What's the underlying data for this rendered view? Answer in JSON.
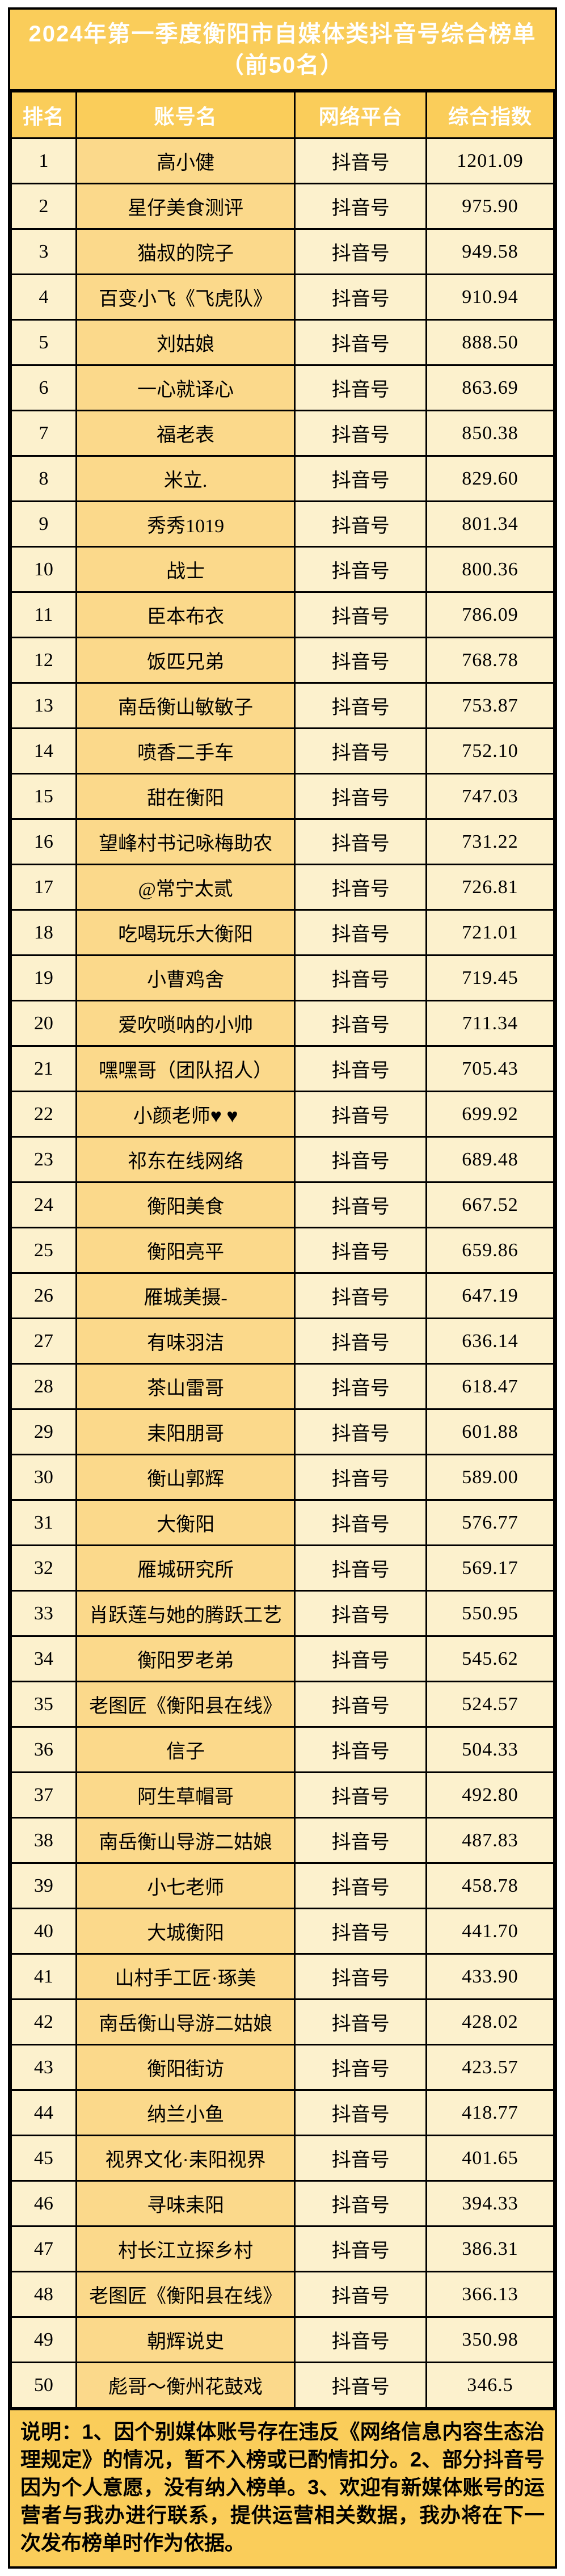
{
  "title": {
    "line1": "2024年第一季度衡阳市自媒体类抖音号综合榜单",
    "line2": "（前50名）"
  },
  "table": {
    "headers": {
      "rank": "排名",
      "name": "账号名",
      "platform": "网络平台",
      "index": "综合指数"
    },
    "rows": [
      {
        "rank": "1",
        "name": "高小健",
        "platform": "抖音号",
        "index": "1201.09"
      },
      {
        "rank": "2",
        "name": "星仔美食测评",
        "platform": "抖音号",
        "index": "975.90"
      },
      {
        "rank": "3",
        "name": "猫叔的院子",
        "platform": "抖音号",
        "index": "949.58"
      },
      {
        "rank": "4",
        "name": "百变小飞《飞虎队》",
        "platform": "抖音号",
        "index": "910.94"
      },
      {
        "rank": "5",
        "name": "刘姑娘",
        "platform": "抖音号",
        "index": "888.50"
      },
      {
        "rank": "6",
        "name": "一心就译心",
        "platform": "抖音号",
        "index": "863.69"
      },
      {
        "rank": "7",
        "name": "福老表",
        "platform": "抖音号",
        "index": "850.38"
      },
      {
        "rank": "8",
        "name": "米立.",
        "platform": "抖音号",
        "index": "829.60"
      },
      {
        "rank": "9",
        "name": "秀秀1019",
        "platform": "抖音号",
        "index": "801.34"
      },
      {
        "rank": "10",
        "name": "战士",
        "platform": "抖音号",
        "index": "800.36"
      },
      {
        "rank": "11",
        "name": "臣本布衣",
        "platform": "抖音号",
        "index": "786.09"
      },
      {
        "rank": "12",
        "name": "饭匹兄弟",
        "platform": "抖音号",
        "index": "768.78"
      },
      {
        "rank": "13",
        "name": "南岳衡山敏敏子",
        "platform": "抖音号",
        "index": "753.87"
      },
      {
        "rank": "14",
        "name": "喷香二手车",
        "platform": "抖音号",
        "index": "752.10"
      },
      {
        "rank": "15",
        "name": "甜在衡阳",
        "platform": "抖音号",
        "index": "747.03"
      },
      {
        "rank": "16",
        "name": "望峰村书记咏梅助农",
        "platform": "抖音号",
        "index": "731.22"
      },
      {
        "rank": "17",
        "name": "@常宁太贰",
        "platform": "抖音号",
        "index": "726.81"
      },
      {
        "rank": "18",
        "name": "吃喝玩乐大衡阳",
        "platform": "抖音号",
        "index": "721.01"
      },
      {
        "rank": "19",
        "name": "小曹鸡舍",
        "platform": "抖音号",
        "index": "719.45"
      },
      {
        "rank": "20",
        "name": "爱吹唢呐的小帅",
        "platform": "抖音号",
        "index": "711.34"
      },
      {
        "rank": "21",
        "name": "嘿嘿哥（团队招人）",
        "platform": "抖音号",
        "index": "705.43"
      },
      {
        "rank": "22",
        "name": "小颜老师♥ ♥",
        "platform": "抖音号",
        "index": "699.92"
      },
      {
        "rank": "23",
        "name": "祁东在线网络",
        "platform": "抖音号",
        "index": "689.48"
      },
      {
        "rank": "24",
        "name": "衡阳美食",
        "platform": "抖音号",
        "index": "667.52"
      },
      {
        "rank": "25",
        "name": "衡阳亮平",
        "platform": "抖音号",
        "index": "659.86"
      },
      {
        "rank": "26",
        "name": "雁城美摄-",
        "platform": "抖音号",
        "index": "647.19"
      },
      {
        "rank": "27",
        "name": "有味羽洁",
        "platform": "抖音号",
        "index": "636.14"
      },
      {
        "rank": "28",
        "name": "茶山雷哥",
        "platform": "抖音号",
        "index": "618.47"
      },
      {
        "rank": "29",
        "name": "耒阳朋哥",
        "platform": "抖音号",
        "index": "601.88"
      },
      {
        "rank": "30",
        "name": "衡山郭辉",
        "platform": "抖音号",
        "index": "589.00"
      },
      {
        "rank": "31",
        "name": "大衡阳",
        "platform": "抖音号",
        "index": "576.77"
      },
      {
        "rank": "32",
        "name": "雁城研究所",
        "platform": "抖音号",
        "index": "569.17"
      },
      {
        "rank": "33",
        "name": "肖跃莲与她的腾跃工艺",
        "platform": "抖音号",
        "index": "550.95"
      },
      {
        "rank": "34",
        "name": "衡阳罗老弟",
        "platform": "抖音号",
        "index": "545.62"
      },
      {
        "rank": "35",
        "name": "老图匠《衡阳县在线》",
        "platform": "抖音号",
        "index": "524.57"
      },
      {
        "rank": "36",
        "name": "信子",
        "platform": "抖音号",
        "index": "504.33"
      },
      {
        "rank": "37",
        "name": "阿生草帽哥",
        "platform": "抖音号",
        "index": "492.80"
      },
      {
        "rank": "38",
        "name": "南岳衡山导游二姑娘",
        "platform": "抖音号",
        "index": "487.83"
      },
      {
        "rank": "39",
        "name": "小七老师",
        "platform": "抖音号",
        "index": "458.78"
      },
      {
        "rank": "40",
        "name": "大城衡阳",
        "platform": "抖音号",
        "index": "441.70"
      },
      {
        "rank": "41",
        "name": "山村手工匠·琢美",
        "platform": "抖音号",
        "index": "433.90"
      },
      {
        "rank": "42",
        "name": "南岳衡山导游二姑娘",
        "platform": "抖音号",
        "index": "428.02"
      },
      {
        "rank": "43",
        "name": "衡阳街访",
        "platform": "抖音号",
        "index": "423.57"
      },
      {
        "rank": "44",
        "name": "纳兰小鱼",
        "platform": "抖音号",
        "index": "418.77"
      },
      {
        "rank": "45",
        "name": "视界文化·耒阳视界",
        "platform": "抖音号",
        "index": "401.65"
      },
      {
        "rank": "46",
        "name": "寻味耒阳",
        "platform": "抖音号",
        "index": "394.33"
      },
      {
        "rank": "47",
        "name": "村长江立探乡村",
        "platform": "抖音号",
        "index": "386.31"
      },
      {
        "rank": "48",
        "name": "老图匠《衡阳县在线》",
        "platform": "抖音号",
        "index": "366.13"
      },
      {
        "rank": "49",
        "name": "朝辉说史",
        "platform": "抖音号",
        "index": "350.98"
      },
      {
        "rank": "50",
        "name": "彪哥～衡州花鼓戏",
        "platform": "抖音号",
        "index": "346.5"
      }
    ]
  },
  "footer": {
    "note": "说明：1、因个别媒体账号存在违反《网络信息内容生态治理规定》的情况，暂不入榜或已酌情扣分。2、部分抖音号因为个人意愿，没有纳入榜单。3、欢迎有新媒体账号的运营者与我办进行联系，提供运营相关数据，我办将在下一次发布榜单时作为依据。"
  },
  "colors": {
    "banner_bg": "#FACD5A",
    "name_cell_bg": "#FBD98B",
    "light_cell_bg": "#FCF1CD",
    "border": "#000000",
    "banner_text": "#FFFFFF",
    "body_text": "#000000"
  }
}
